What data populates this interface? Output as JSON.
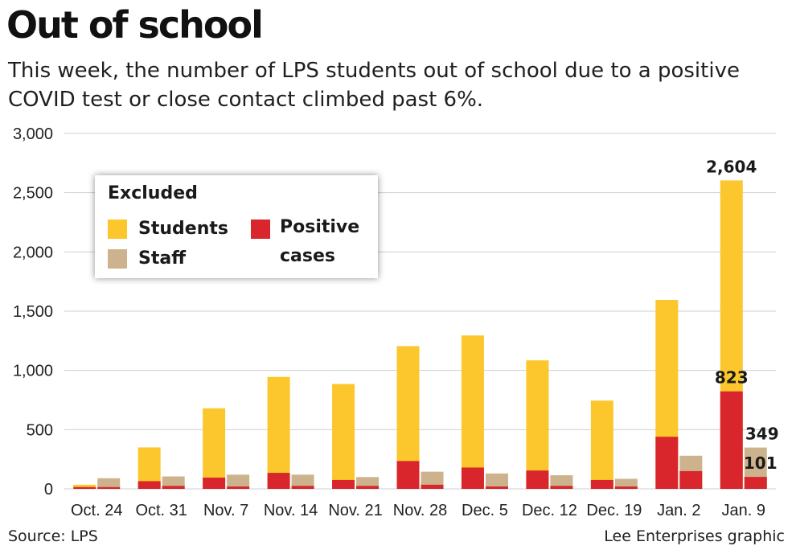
{
  "header": {
    "title": "Out of school",
    "subtitle": "This week, the number of LPS students out of school due to a positive COVID test or close contact climbed past 6%."
  },
  "legend": {
    "title": "Excluded",
    "students": "Students",
    "staff": "Staff",
    "positive": "Positive",
    "positive_line2": "cases"
  },
  "footer": {
    "source": "Source: LPS",
    "credit": "Lee Enterprises graphic"
  },
  "colors": {
    "students": "#fcc72c",
    "students_positive": "#d8262c",
    "staff": "#cdb38d",
    "staff_positive": "#d8262c",
    "grid": "#cfcfcf"
  },
  "chart_data": {
    "type": "bar",
    "title": "Out of school",
    "ylim": [
      0,
      3000
    ],
    "yticks": [
      0,
      500,
      1000,
      1500,
      2000,
      2500,
      3000
    ],
    "ytick_labels": [
      "0",
      "500",
      "1,000",
      "1,500",
      "2,000",
      "2,500",
      "3,000"
    ],
    "grid": true,
    "legend_position": "top-left",
    "categories": [
      "Oct. 24",
      "Oct. 31",
      "Nov. 7",
      "Nov. 14",
      "Nov. 21",
      "Nov. 28",
      "Dec. 5",
      "Dec. 12",
      "Dec. 19",
      "Jan. 2",
      "Jan. 9"
    ],
    "series": [
      {
        "name": "Students",
        "values": [
          35,
          350,
          680,
          945,
          885,
          1205,
          1295,
          1085,
          745,
          1595,
          2604
        ]
      },
      {
        "name": "Staff",
        "values": [
          90,
          105,
          120,
          120,
          100,
          145,
          130,
          115,
          85,
          280,
          349
        ]
      },
      {
        "name": "Positive cases",
        "group": "Students",
        "values": [
          15,
          65,
          95,
          135,
          75,
          235,
          180,
          155,
          75,
          440,
          823
        ]
      },
      {
        "name": "Positive cases",
        "group": "Staff",
        "values": [
          15,
          25,
          20,
          25,
          25,
          35,
          20,
          25,
          20,
          150,
          101
        ]
      }
    ],
    "annotations": [
      {
        "category": "Jan. 9",
        "series": "Students",
        "text": "2,604"
      },
      {
        "category": "Jan. 9",
        "series": "Students positive",
        "text": "823"
      },
      {
        "category": "Jan. 9",
        "series": "Staff",
        "text": "349"
      },
      {
        "category": "Jan. 9",
        "series": "Staff positive",
        "text": "101"
      }
    ]
  }
}
